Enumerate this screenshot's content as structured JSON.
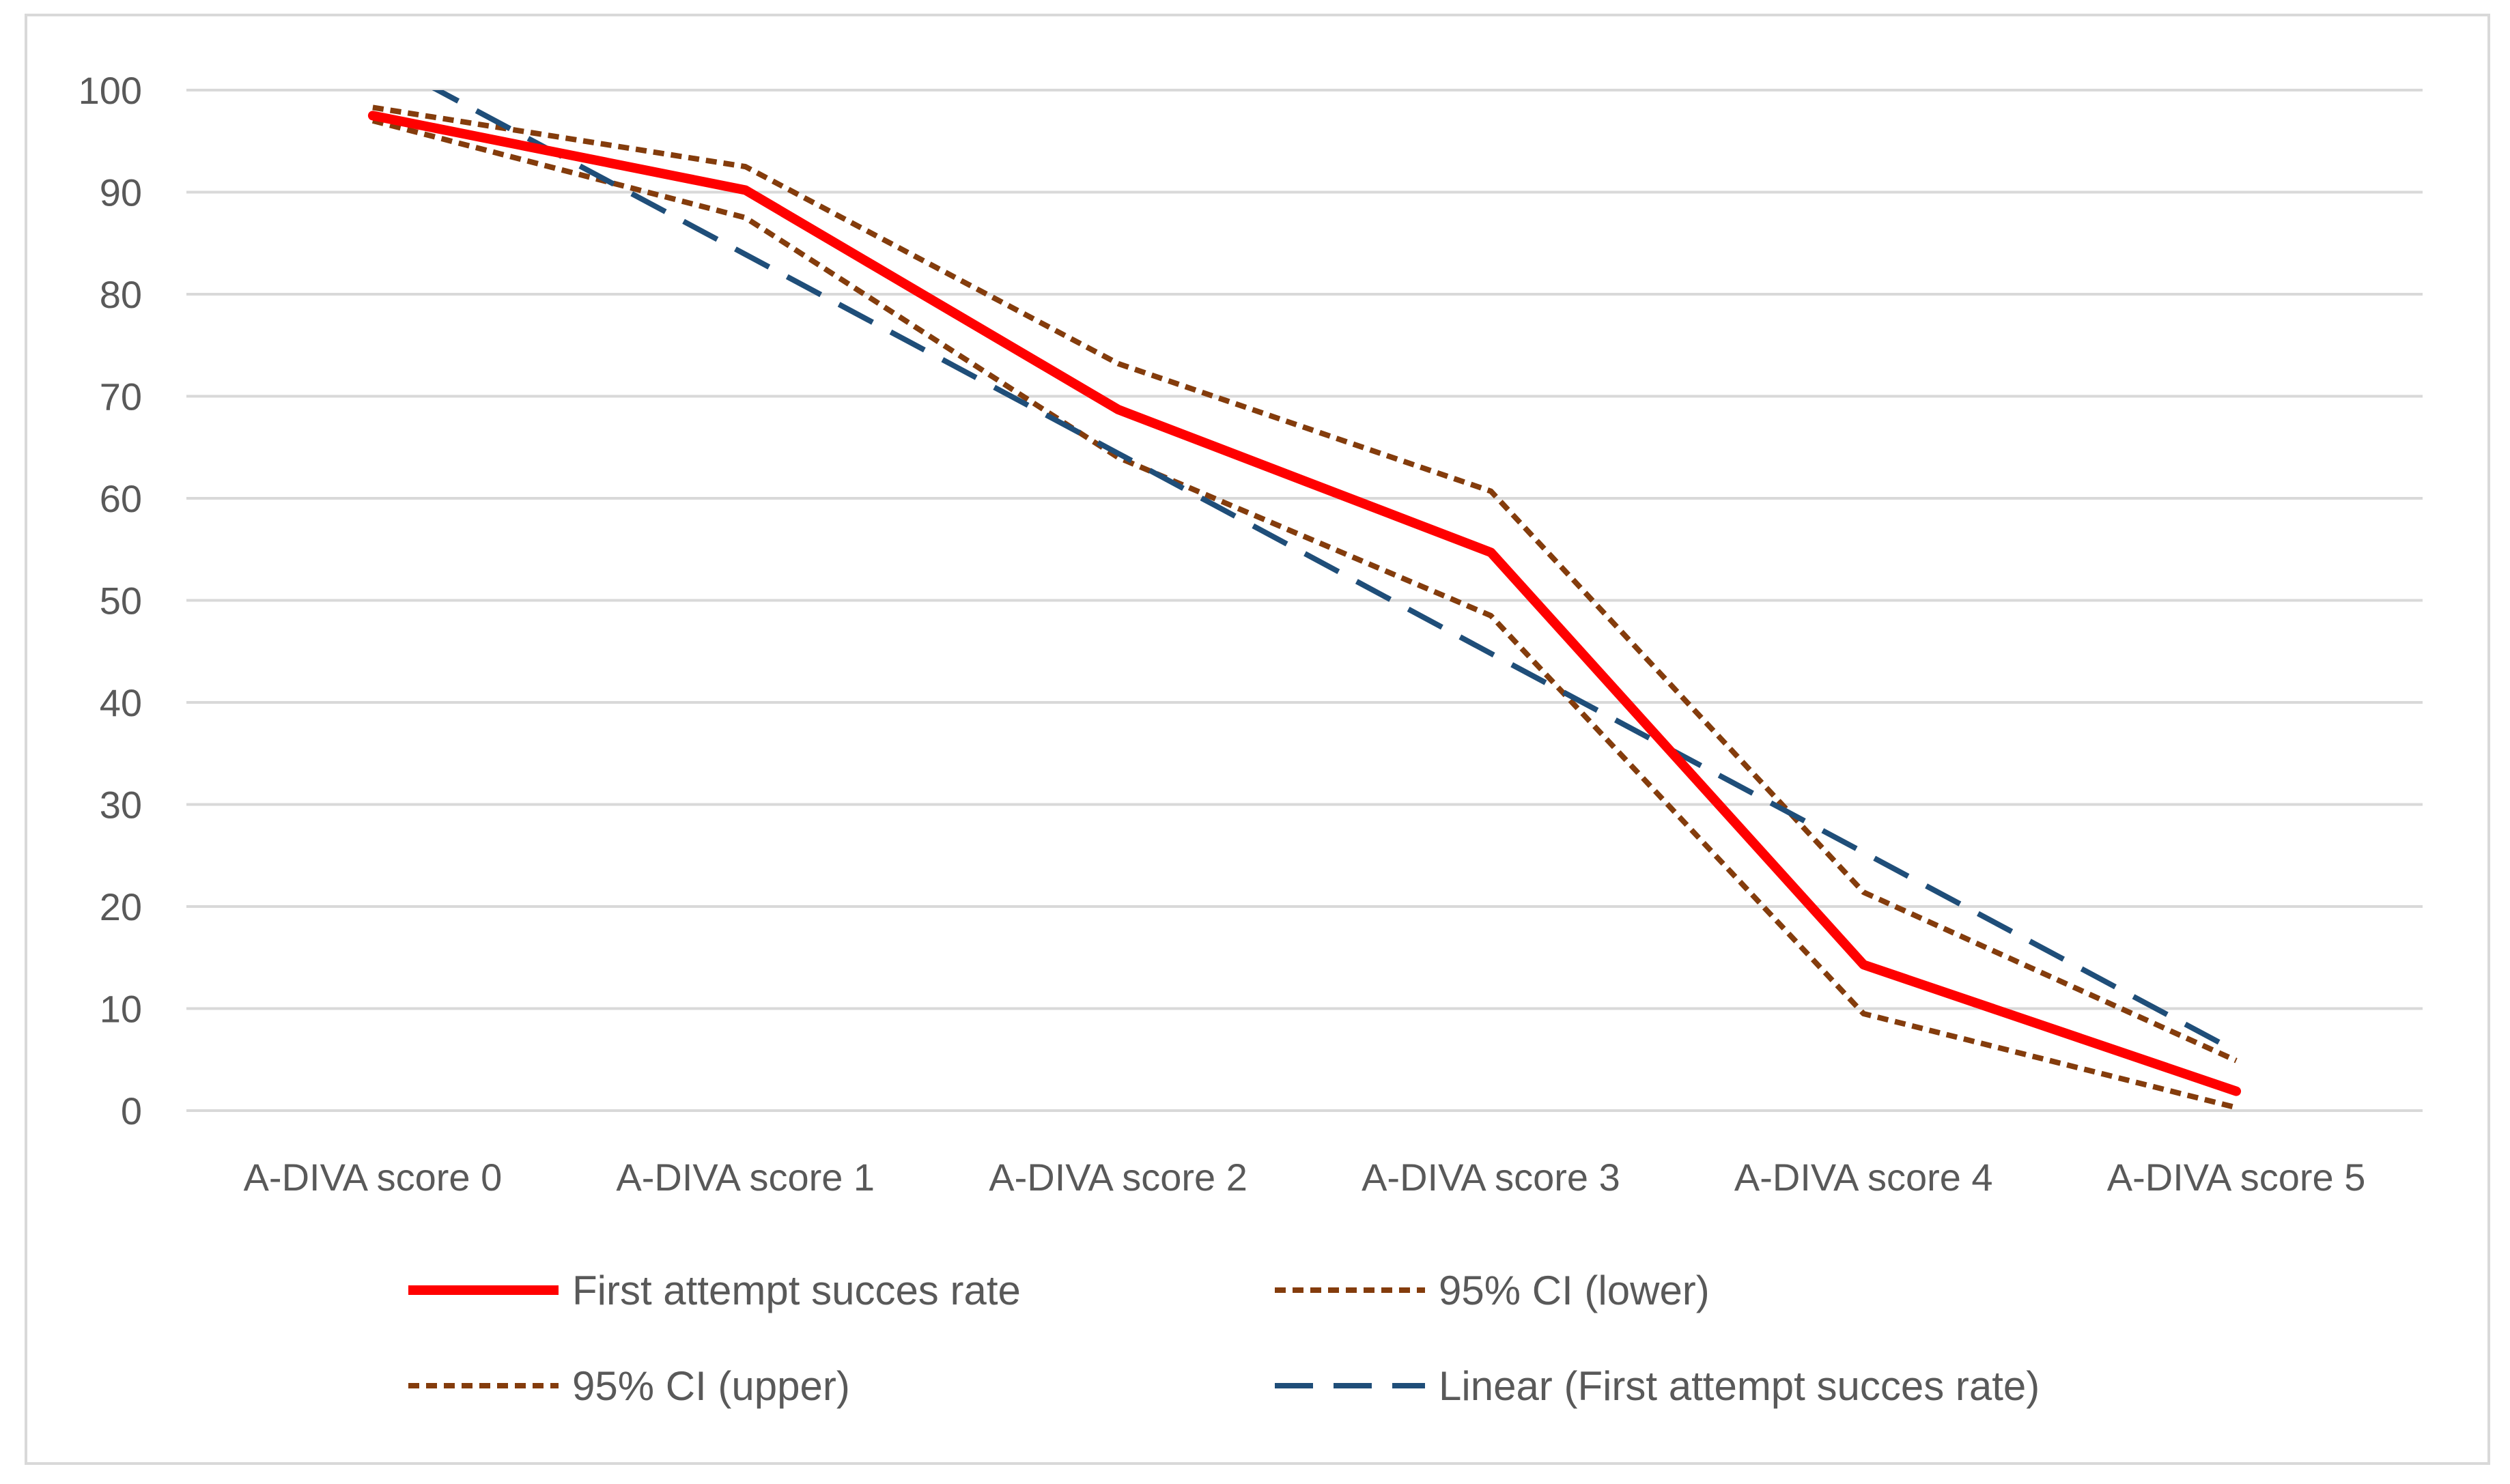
{
  "chart_data": {
    "type": "line",
    "title": "",
    "xlabel": "",
    "ylabel": "",
    "ylim": [
      0,
      100
    ],
    "yticks": [
      0,
      10,
      20,
      30,
      40,
      50,
      60,
      70,
      80,
      90,
      100
    ],
    "grid": "horizontal",
    "legend_position": "bottom",
    "categories": [
      "A-DIVA score 0",
      "A-DIVA score 1",
      "A-DIVA score 2",
      "A-DIVA score 3",
      "A-DIVA score 4",
      "A-DIVA score 5"
    ],
    "series": [
      {
        "name": "First attempt succes rate",
        "values": [
          97.5,
          90.2,
          68.7,
          54.7,
          14.3,
          1.9
        ],
        "color": "#ff0000",
        "style": "solid"
      },
      {
        "name": "95% CI (lower)",
        "values": [
          97.0,
          87.5,
          64.0,
          48.5,
          9.5,
          0.3
        ],
        "color": "#843c0c",
        "style": "dotted"
      },
      {
        "name": "95% CI (upper)",
        "values": [
          98.3,
          92.5,
          73.2,
          60.7,
          21.4,
          4.9
        ],
        "color": "#843c0c",
        "style": "dotted"
      },
      {
        "name": "Linear (First attempt succes rate)",
        "values": [
          103.4,
          83.9,
          64.4,
          44.8,
          25.3,
          5.8
        ],
        "color": "#1f4e79",
        "style": "dashed",
        "trendline": true
      }
    ],
    "legend": [
      {
        "label": "First attempt succes rate",
        "series": 0
      },
      {
        "label": "95% CI (lower)",
        "series": 1
      },
      {
        "label": "95% CI (upper)",
        "series": 2
      },
      {
        "label": "Linear (First attempt succes rate)",
        "series": 3
      }
    ]
  }
}
